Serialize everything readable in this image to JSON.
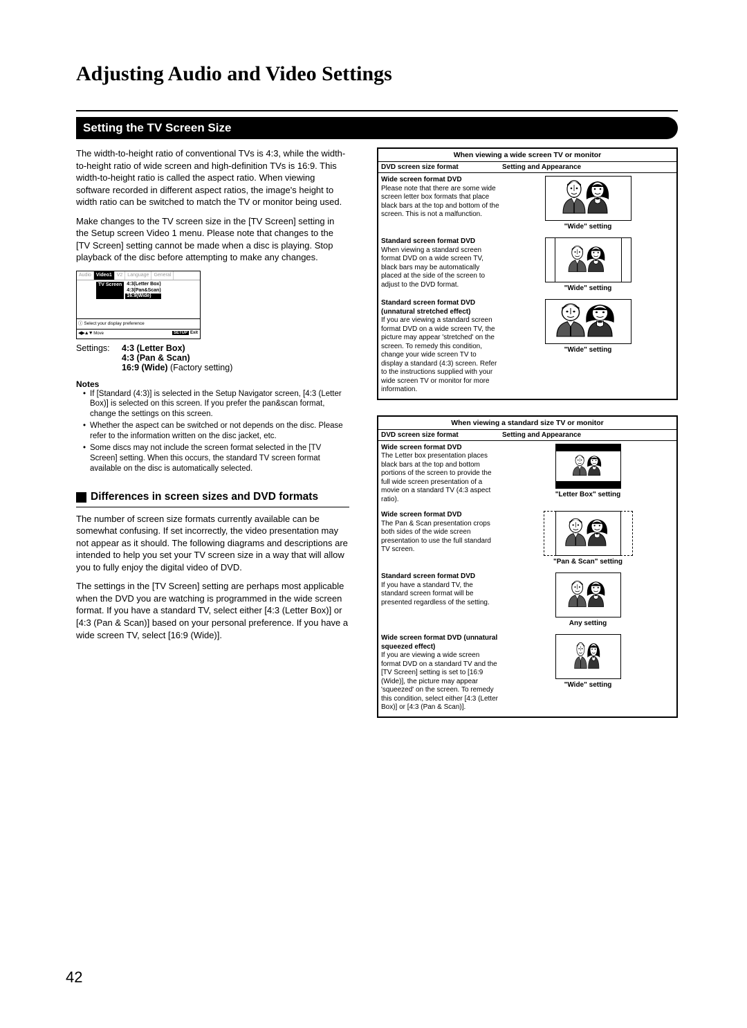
{
  "page_title": "Adjusting Audio and Video Settings",
  "section_banner": "Setting the TV Screen Size",
  "intro_p1": "The width-to-height ratio of conventional TVs is 4:3, while the width-to-height ratio of wide screen and high-definition TVs is 16:9. This width-to-height ratio is called the aspect ratio. When viewing software recorded in different aspect ratios, the image's height to width ratio can be switched to match the TV or monitor being used.",
  "intro_p2": "Make changes to the TV screen size in the [TV Screen] setting in the Setup screen Video 1 menu. Please note that changes to the [TV Screen] setting cannot be made when a disc is playing. Stop playback of the disc before attempting to make any changes.",
  "setup_menu": {
    "tabs": [
      "Audio",
      "Video1",
      "V2",
      "Language",
      "General"
    ],
    "active_tab": 1,
    "label": "TV Screen",
    "options": [
      "4:3(Letter Box)",
      "4:3(Pan&Scan)",
      "16:9(Wide)"
    ],
    "selected_option": 2,
    "hint_text": "Select your display preference",
    "footer_move": "Move",
    "footer_setup": "SETUP",
    "footer_exit": "Exit"
  },
  "settings_label": "Settings:",
  "settings_opts": [
    "4:3 (Letter Box)",
    "4:3 (Pan & Scan)",
    "16:9 (Wide)"
  ],
  "settings_factory": " (Factory setting)",
  "notes_hdr": "Notes",
  "notes": [
    "If [Standard (4:3)] is selected in the Setup Navigator screen, [4:3 (Letter Box)] is selected on this screen. If you prefer the pan&scan format, change the settings on this screen.",
    "Whether the aspect can be switched or not depends on the disc. Please refer to the information written on the disc jacket, etc.",
    "Some discs may not include the screen format selected in the [TV Screen] setting. When this occurs, the standard TV screen format available on the disc is automatically selected."
  ],
  "subhead": "Differences in screen sizes and DVD formats",
  "diff_p1": "The number of screen size formats currently available can be somewhat confusing. If set incorrectly, the video presentation may not appear as it should. The following diagrams and descriptions are intended to help you set your TV screen size in a way that will allow you to fully enjoy the digital video of DVD.",
  "diff_p2": "The settings in the [TV Screen] setting are perhaps most applicable when the DVD you are watching  is programmed in the wide screen format. If you have a standard TV, select either [4:3 (Letter Box)] or [4:3 (Pan & Scan)] based on your personal preference. If you have a wide screen TV, select [16:9 (Wide)].",
  "table_a": {
    "caption": "When viewing a wide screen TV or monitor",
    "col1": "DVD screen size format",
    "col2": "Setting and Appearance",
    "rows": [
      {
        "title": "Wide screen format DVD",
        "body": "Please note that there are some wide screen letter box formats that place black bars at the top and bottom of the screen. This is not a malfunction.",
        "setting": "\"Wide\" setting",
        "illus": "wide_normal"
      },
      {
        "title": "Standard screen format DVD",
        "body": "When viewing a standard screen format DVD on a wide screen TV,  black bars may be automatically placed at the side of the screen to adjust to the DVD format.",
        "setting": "\"Wide\" setting",
        "illus": "wide_sidebars"
      },
      {
        "title": "Standard screen format DVD (unnatural stretched effect)",
        "body": "If you are viewing a standard screen format DVD on a wide screen TV, the picture may appear 'stretched' on the screen. To remedy this condition, change your wide screen TV to display a standard (4:3) screen. Refer to the instructions supplied with your wide screen TV or monitor for more information.",
        "setting": "\"Wide\" setting",
        "illus": "wide_stretched"
      }
    ]
  },
  "table_b": {
    "caption": "When viewing a standard size TV or monitor",
    "col1": "DVD screen size format",
    "col2": "Setting and Appearance",
    "rows": [
      {
        "title": "Wide screen format DVD",
        "body": "The Letter box presentation places black bars at the top and bottom portions of the screen to provide the full wide screen presentation of a movie on a standard TV (4:3 aspect ratio).",
        "setting": "\"Letter Box\" setting",
        "illus": "std_letterbox"
      },
      {
        "title": "Wide screen format DVD",
        "body": "The Pan & Scan presentation crops both sides of the wide screen presentation to use the full standard TV screen.",
        "setting": "\"Pan & Scan\" setting",
        "illus": "std_panscan"
      },
      {
        "title": "Standard screen format DVD",
        "body": "If you have a standard TV, the standard screen format will be presented regardless of the setting.",
        "setting": "Any setting",
        "illus": "std_normal"
      },
      {
        "title": "Wide screen format DVD (unnatural squeezed effect)",
        "body": "If you are viewing a wide screen format DVD on a standard TV and the [TV Screen] setting is set to [16:9 (Wide)], the picture may appear 'squeezed' on the screen. To remedy this condition, select either [4:3 (Letter Box)] or [4:3 (Pan & Scan)].",
        "setting": "\"Wide\" setting",
        "illus": "std_squeezed"
      }
    ]
  },
  "page_number": "42",
  "people_svg_scale": {
    "wide_normal": {
      "sx": 1,
      "sy": 1
    },
    "wide_sidebars": {
      "sx": 1,
      "sy": 1
    },
    "wide_stretched": {
      "sx": 1.25,
      "sy": 1
    },
    "std_letterbox": {
      "sx": 0.78,
      "sy": 0.78
    },
    "std_panscan": {
      "sx": 1.15,
      "sy": 1.05
    },
    "std_normal": {
      "sx": 1,
      "sy": 1
    },
    "std_squeezed": {
      "sx": 0.7,
      "sy": 1
    }
  }
}
